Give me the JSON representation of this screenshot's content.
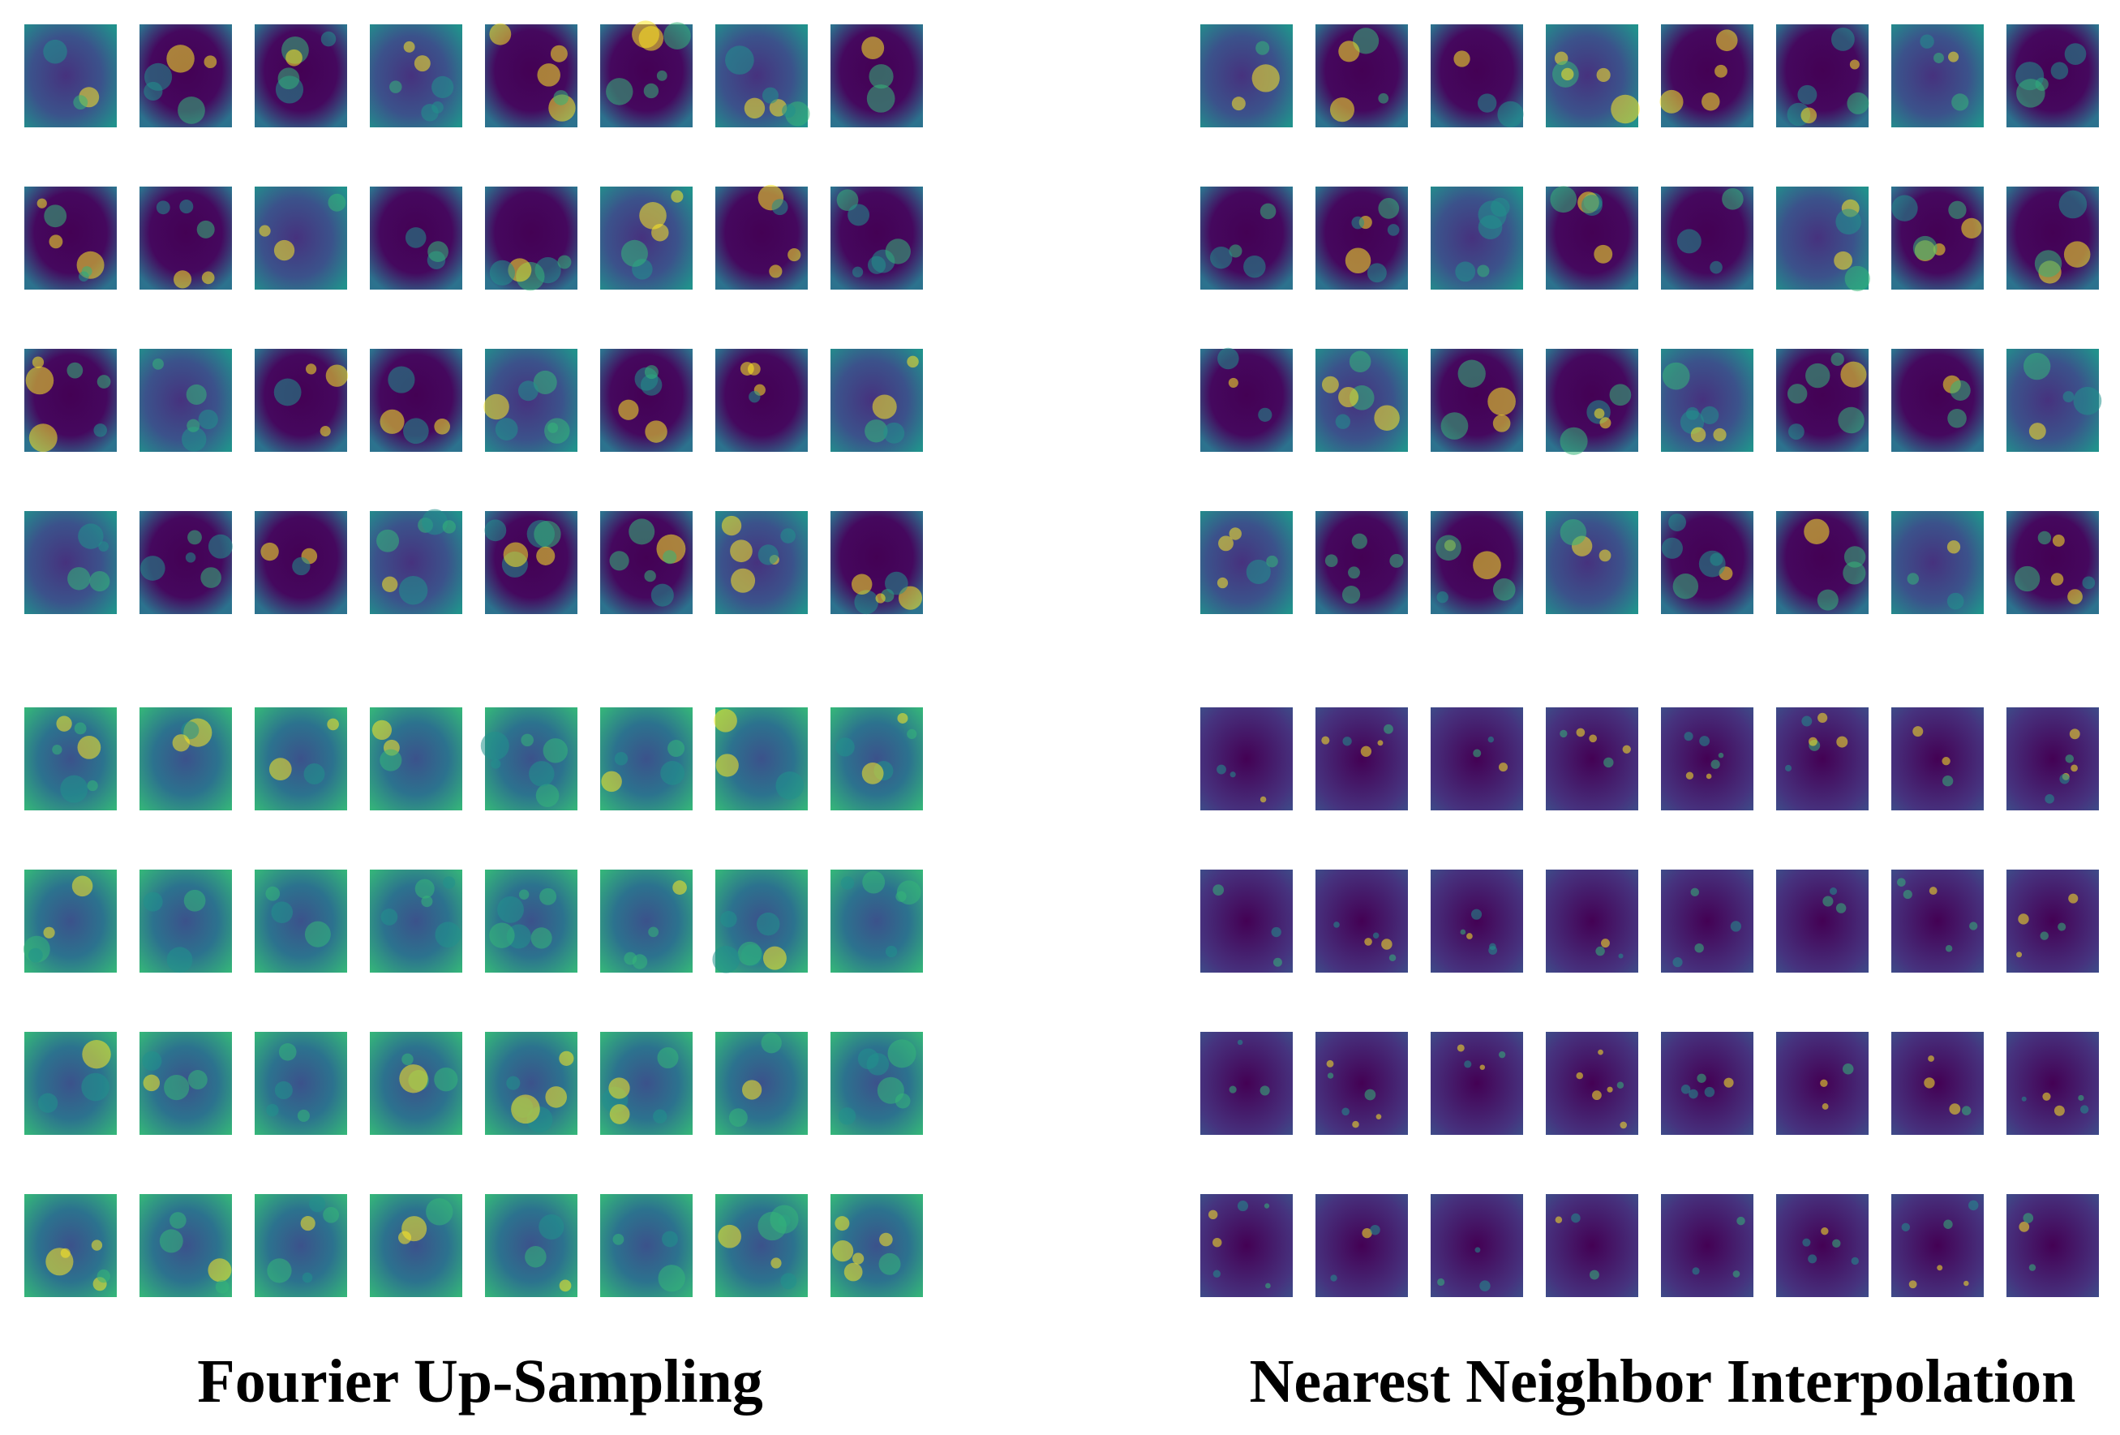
{
  "panels": [
    {
      "title": "Fourier Up-Sampling"
    },
    {
      "title": "Nearest Neighbor Interpolation"
    }
  ]
}
